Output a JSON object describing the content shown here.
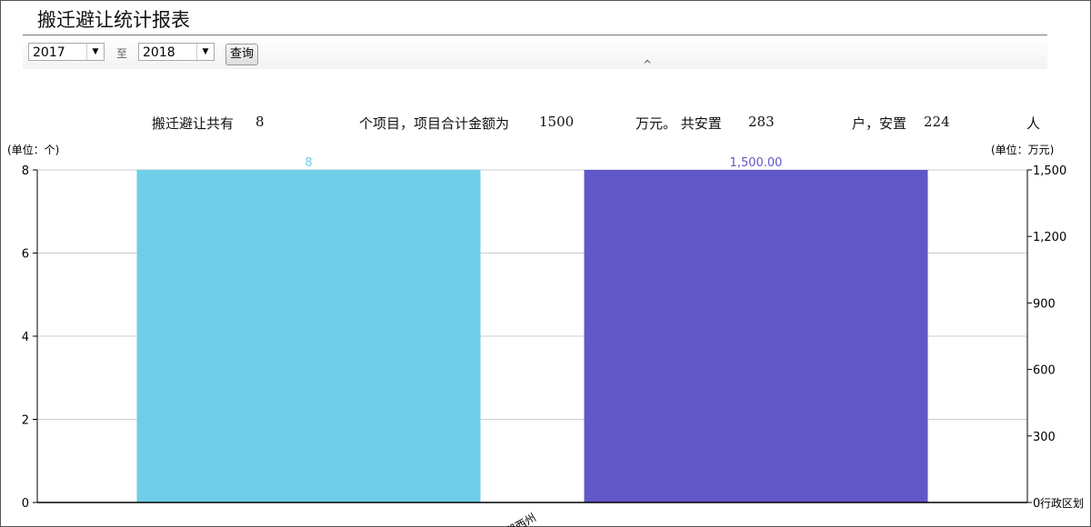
{
  "title": "搬迁避让统计报表",
  "filter": {
    "start_year": "2017",
    "to_label": "至",
    "end_year": "2018",
    "query_label": "查询",
    "collapse_icon": "chevron-up-icon"
  },
  "summary": {
    "p1": "搬迁避让共有",
    "projects": "8",
    "p2": "个项目，项目合计金额为",
    "amount": "1500",
    "p3": "万元。 共安置",
    "households": "283",
    "p4": "户，安置",
    "people": "224",
    "p5": "人"
  },
  "chart_data": {
    "type": "bar",
    "categories": [
      "湘西州"
    ],
    "xlabel": "行政区划",
    "series": [
      {
        "values": [
          8
        ],
        "axis": "left",
        "color": "#70cde8",
        "data_labels": [
          "8"
        ]
      },
      {
        "values": [
          1500
        ],
        "axis": "right",
        "color": "#6157c6",
        "data_labels": [
          "1,500.00"
        ]
      }
    ],
    "left_axis": {
      "label": "(单位：个)",
      "ylim": [
        0,
        8
      ],
      "ticks": [
        "0",
        "2",
        "4",
        "6",
        "8"
      ]
    },
    "right_axis": {
      "label": "(单位：万元)",
      "ylim": [
        0,
        1500
      ],
      "ticks": [
        "0",
        "300",
        "600",
        "900",
        "1,200",
        "1,500"
      ]
    },
    "grid": true
  }
}
